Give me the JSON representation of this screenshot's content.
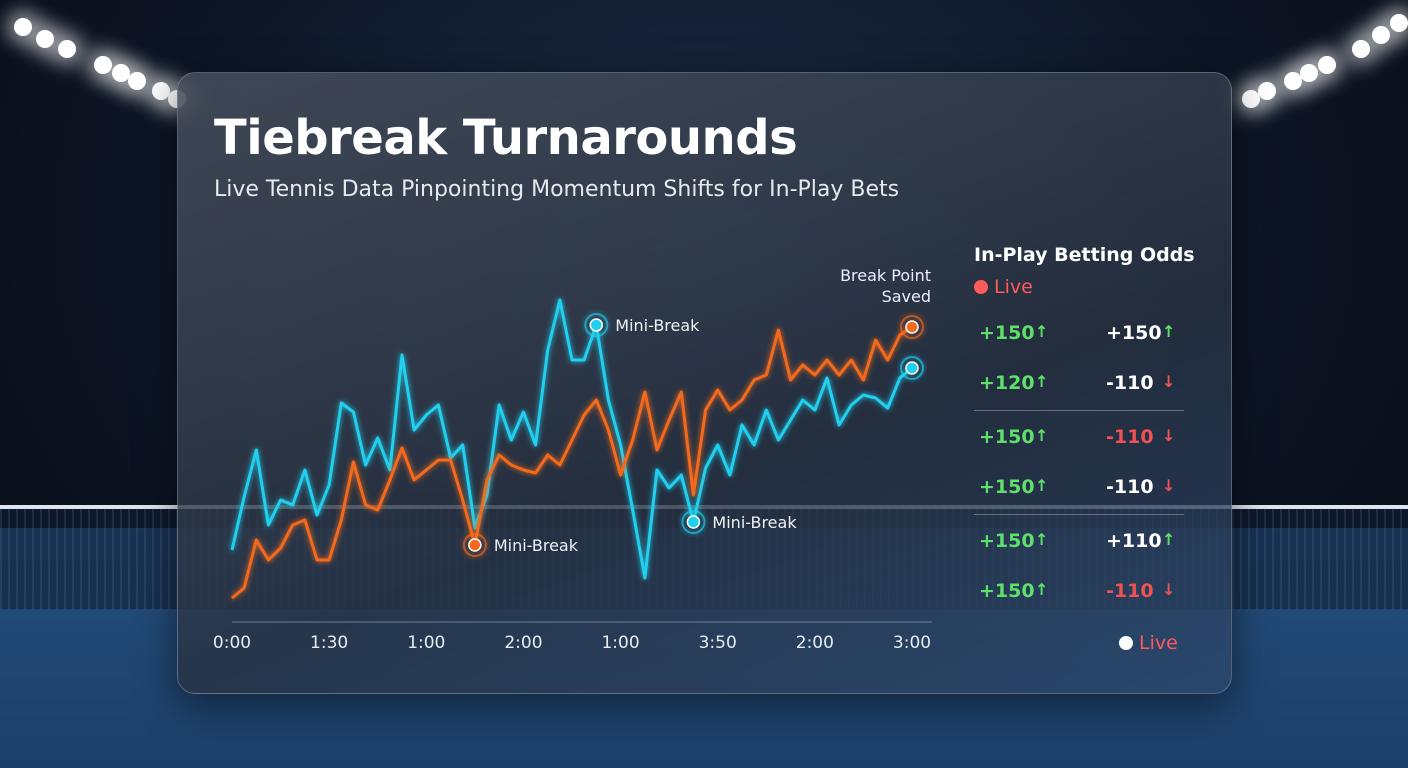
{
  "chart_data": {
    "type": "line",
    "title": "Tiebreak Turnarounds",
    "subtitle": "Live Tennis Data Pinpointing Momentum Shifts for In-Play Bets",
    "categories": [
      "0:00",
      null,
      null,
      null,
      null,
      null,
      null,
      null,
      "1:30",
      null,
      null,
      null,
      null,
      null,
      null,
      null,
      "1:00",
      null,
      null,
      null,
      null,
      null,
      null,
      null,
      "2:00",
      null,
      null,
      null,
      null,
      null,
      null,
      null,
      "1:00",
      null,
      null,
      null,
      null,
      null,
      null,
      null,
      "3:50",
      null,
      null,
      null,
      null,
      null,
      null,
      null,
      "2:00",
      null,
      null,
      null,
      null,
      null,
      null,
      null,
      "3:00"
    ],
    "series": [
      {
        "color": "#22cfee",
        "values": [
          70,
          123,
          170,
          95,
          120,
          115,
          150,
          105,
          135,
          217,
          208,
          155,
          182,
          150,
          265,
          190,
          205,
          215,
          162,
          175,
          92,
          125,
          215,
          180,
          208,
          175,
          270,
          320,
          260,
          260,
          295,
          220,
          175,
          110,
          42,
          150,
          132,
          145,
          98,
          152,
          175,
          145,
          195,
          175,
          210,
          180,
          200,
          220,
          210,
          242,
          195,
          215,
          225,
          222,
          212,
          242,
          252
        ]
      },
      {
        "color": "#f36a1f",
        "values": [
          22,
          32,
          80,
          60,
          72,
          95,
          100,
          60,
          60,
          100,
          158,
          115,
          110,
          140,
          172,
          140,
          150,
          160,
          160,
          120,
          75,
          140,
          165,
          155,
          150,
          147,
          165,
          155,
          180,
          205,
          220,
          190,
          145,
          180,
          228,
          170,
          200,
          228,
          125,
          210,
          230,
          210,
          220,
          240,
          245,
          290,
          240,
          255,
          245,
          260,
          245,
          260,
          240,
          280,
          260,
          285,
          293
        ]
      }
    ],
    "annotations": [
      "Mini-Break",
      "Mini-Break",
      "Mini-Break",
      "Break Point Saved"
    ]
  },
  "odds_panel": {
    "title": "In-Play Betting Odds",
    "status": "Live",
    "footer": "Live",
    "groups": [
      [
        [
          {
            "odds": "+150",
            "trend": "up",
            "color": "#5ee06a"
          },
          {
            "odds": "+150",
            "trend": "up",
            "color": "#ffffff"
          }
        ],
        [
          {
            "odds": "+120",
            "trend": "up",
            "color": "#5ee06a"
          },
          {
            "odds": "-110",
            "trend": "down",
            "color": "#ffffff"
          }
        ]
      ],
      [
        [
          {
            "odds": "+150",
            "trend": "up",
            "color": "#5ee06a"
          },
          {
            "odds": "-110",
            "trend": "down",
            "color": "#f05252"
          }
        ],
        [
          {
            "odds": "+150",
            "trend": "up",
            "color": "#5ee06a"
          },
          {
            "odds": "-110",
            "trend": "down",
            "color": "#ffffff"
          }
        ]
      ],
      [
        [
          {
            "odds": "+150",
            "trend": "up",
            "color": "#5ee06a"
          },
          {
            "odds": "+110",
            "trend": "up",
            "color": "#ffffff"
          }
        ],
        [
          {
            "odds": "+150",
            "trend": "up",
            "color": "#5ee06a"
          },
          {
            "odds": "-110",
            "trend": "down",
            "color": "#f05252"
          }
        ]
      ]
    ]
  }
}
